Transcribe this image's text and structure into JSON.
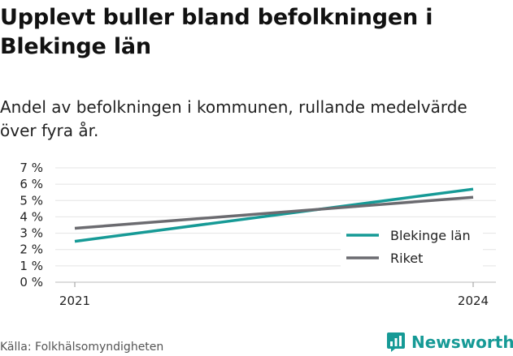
{
  "title": "Upplevt buller bland befolkningen i Blekinge län",
  "subtitle": "Andel av befolkningen i kommunen, rullande medelvärde över fyra år.",
  "source": "Källa: Folkhälsomyndigheten",
  "brand": {
    "name": "Newsworthy",
    "icon": "newsworthy-logo-icon",
    "color": "#169a96"
  },
  "chart_data": {
    "type": "line",
    "x": [
      2021,
      2024
    ],
    "x_tick_labels": [
      "2021",
      "2024"
    ],
    "y_ticks": [
      0,
      1,
      2,
      3,
      4,
      5,
      6,
      7
    ],
    "y_tick_labels": [
      "0 %",
      "1 %",
      "2 %",
      "3 %",
      "4 %",
      "5 %",
      "6 %",
      "7 %"
    ],
    "ylim": [
      0,
      7
    ],
    "grid": true,
    "legend_position": "bottom-right",
    "series": [
      {
        "name": "Blekinge län",
        "values": [
          2.5,
          5.7
        ],
        "color": "#169a96"
      },
      {
        "name": "Riket",
        "values": [
          3.3,
          5.2
        ],
        "color": "#6b6b70"
      }
    ]
  }
}
